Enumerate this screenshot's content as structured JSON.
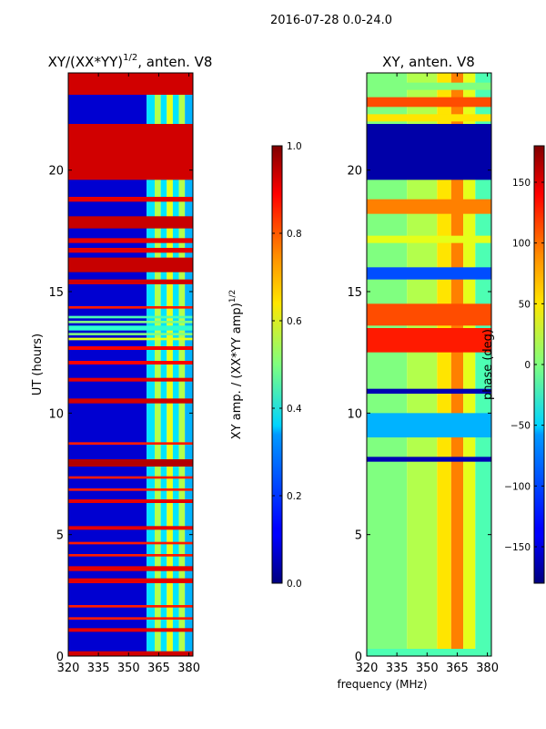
{
  "figure": {
    "suptitle": "2016-07-28 0.0-24.0",
    "xlabel_shared": "frequency (MHz)"
  },
  "chart_data": [
    {
      "type": "heatmap",
      "title_main": "XY/(XX*YY)",
      "title_sup": "1/2",
      "title_rest": ", anten. V8",
      "xlabel": "",
      "ylabel": "UT (hours)",
      "xlim": [
        320,
        382
      ],
      "ylim": [
        0,
        24
      ],
      "xticks": [
        320,
        335,
        350,
        365,
        380
      ],
      "yticks": [
        0,
        5,
        10,
        15,
        20
      ],
      "value_kind": "amplitude",
      "colorbar": {
        "label_main": "XY amp. / (XX*YY amp)",
        "label_sup": "1/2",
        "range": [
          0.0,
          1.0
        ],
        "ticks": [
          "0.0",
          "0.2",
          "0.4",
          "0.6",
          "0.8",
          "1.0"
        ],
        "tick_values": [
          0.0,
          0.2,
          0.4,
          0.6,
          0.8,
          1.0
        ],
        "colormap": "jet"
      },
      "band_edges_mhz": [
        320,
        359,
        363,
        366,
        369,
        372,
        375,
        378,
        382
      ],
      "band_values": [
        0.08,
        0.35,
        0.55,
        0.35,
        0.6,
        0.35,
        0.55,
        0.3
      ],
      "rows": [
        {
          "t0": 0.0,
          "t1": 0.2,
          "v": 0.92
        },
        {
          "t0": 1.0,
          "t1": 1.15,
          "v": 0.9
        },
        {
          "t0": 1.5,
          "t1": 1.6,
          "v": 0.85
        },
        {
          "t0": 2.0,
          "t1": 2.1,
          "v": 0.85
        },
        {
          "t0": 3.0,
          "t1": 3.2,
          "v": 0.9
        },
        {
          "t0": 3.5,
          "t1": 3.7,
          "v": 0.9
        },
        {
          "t0": 4.1,
          "t1": 4.2,
          "v": 0.85
        },
        {
          "t0": 4.6,
          "t1": 4.7,
          "v": 0.85
        },
        {
          "t0": 5.2,
          "t1": 5.35,
          "v": 0.9
        },
        {
          "t0": 6.3,
          "t1": 6.45,
          "v": 0.9
        },
        {
          "t0": 6.8,
          "t1": 6.9,
          "v": 0.85
        },
        {
          "t0": 7.3,
          "t1": 7.4,
          "v": 0.85
        },
        {
          "t0": 7.8,
          "t1": 8.1,
          "v": 0.95
        },
        {
          "t0": 8.7,
          "t1": 8.8,
          "v": 0.85
        },
        {
          "t0": 10.4,
          "t1": 10.6,
          "v": 0.92
        },
        {
          "t0": 11.3,
          "t1": 11.45,
          "v": 0.9
        },
        {
          "t0": 12.0,
          "t1": 12.15,
          "v": 0.88
        },
        {
          "t0": 12.6,
          "t1": 12.75,
          "v": 0.88
        },
        {
          "t0": 13.0,
          "t1": 13.1,
          "v": 0.6
        },
        {
          "t0": 13.2,
          "t1": 13.3,
          "v": 0.5
        },
        {
          "t0": 13.4,
          "t1": 13.6,
          "v": 0.42
        },
        {
          "t0": 13.7,
          "t1": 13.8,
          "v": 0.5
        },
        {
          "t0": 13.9,
          "t1": 14.0,
          "v": 0.45
        },
        {
          "t0": 14.3,
          "t1": 14.4,
          "v": 0.85
        },
        {
          "t0": 15.3,
          "t1": 15.5,
          "v": 0.92
        },
        {
          "t0": 15.8,
          "t1": 16.4,
          "v": 0.93
        },
        {
          "t0": 16.6,
          "t1": 16.8,
          "v": 0.9
        },
        {
          "t0": 17.0,
          "t1": 17.2,
          "v": 0.9
        },
        {
          "t0": 17.6,
          "t1": 18.1,
          "v": 0.93
        },
        {
          "t0": 18.7,
          "t1": 18.9,
          "v": 0.9
        },
        {
          "t0": 19.6,
          "t1": 21.9,
          "v": 0.92
        },
        {
          "t0": 23.1,
          "t1": 24.0,
          "v": 0.92
        }
      ]
    },
    {
      "type": "heatmap",
      "title_main": "XY, anten. V8",
      "title_sup": "",
      "title_rest": "",
      "xlabel": "frequency (MHz)",
      "ylabel": "",
      "xlim": [
        320,
        382
      ],
      "ylim": [
        0,
        24
      ],
      "xticks": [
        320,
        335,
        350,
        365,
        380
      ],
      "yticks": [
        0,
        5,
        10,
        15,
        20
      ],
      "value_kind": "phase",
      "colorbar": {
        "label_main": "phase (deg)",
        "label_sup": "",
        "range": [
          -180,
          180
        ],
        "ticks": [
          "−150",
          "−100",
          "−50",
          "0",
          "50",
          "100",
          "150"
        ],
        "tick_values": [
          -150,
          -100,
          -50,
          0,
          50,
          100,
          150
        ],
        "colormap": "jet"
      },
      "band_edges_mhz": [
        320,
        340,
        355,
        362,
        368,
        374,
        382
      ],
      "band_values": [
        0.5,
        0.55,
        0.65,
        0.75,
        0.6,
        0.45
      ],
      "rows": [
        {
          "t0": 0.0,
          "t1": 0.3,
          "v": 0.45
        },
        {
          "t0": 8.0,
          "t1": 8.2,
          "v": 0.05
        },
        {
          "t0": 9.0,
          "t1": 10.0,
          "v": 0.3
        },
        {
          "t0": 10.8,
          "t1": 11.0,
          "v": 0.05
        },
        {
          "t0": 12.5,
          "t1": 13.5,
          "v": 0.85
        },
        {
          "t0": 13.6,
          "t1": 14.5,
          "v": 0.8
        },
        {
          "t0": 15.5,
          "t1": 16.0,
          "v": 0.2
        },
        {
          "t0": 17.0,
          "t1": 17.3,
          "v": 0.6
        },
        {
          "t0": 18.2,
          "t1": 18.8,
          "v": 0.75
        },
        {
          "t0": 19.6,
          "t1": 21.9,
          "v": 0.04
        },
        {
          "t0": 22.0,
          "t1": 22.3,
          "v": 0.65
        },
        {
          "t0": 22.6,
          "t1": 23.0,
          "v": 0.8
        },
        {
          "t0": 23.3,
          "t1": 23.6,
          "v": 0.5
        }
      ]
    }
  ]
}
